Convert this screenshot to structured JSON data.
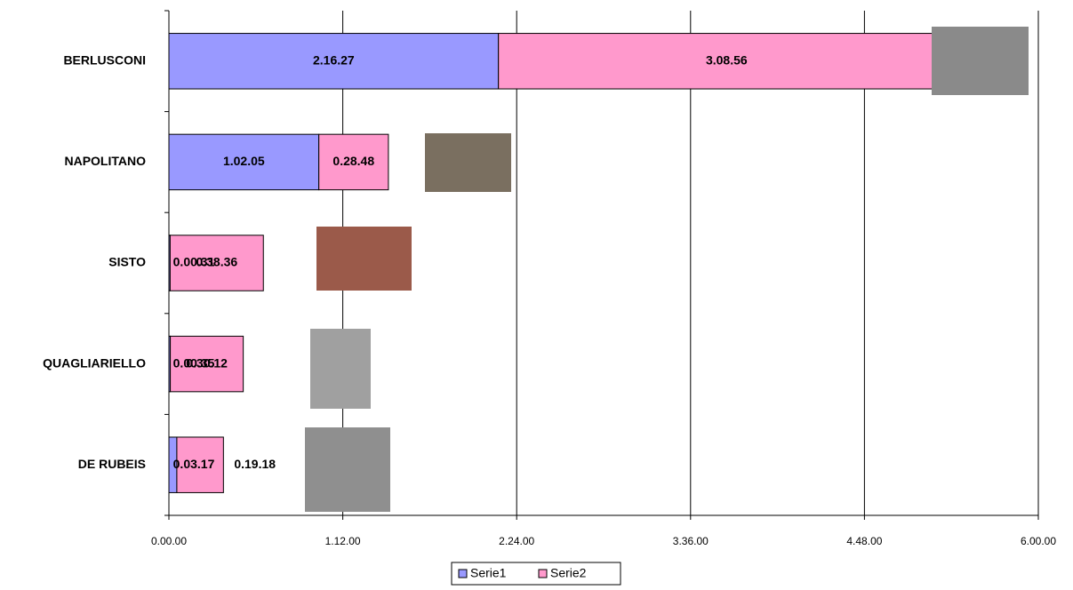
{
  "chart_data": {
    "type": "stacked_barh",
    "categories": [
      "BERLUSCONI",
      "NAPOLITANO",
      "SISTO",
      "QUAGLIARIELLO",
      "DE RUBEIS"
    ],
    "series": [
      {
        "name": "Serie1",
        "color": "#9999ff",
        "values": [
          2.274167,
          1.034722,
          0.008611,
          0.009722,
          0.054722
        ],
        "value_labels": [
          "2.16.27",
          "1.02.05",
          "0.00.31",
          "0.00.35",
          "0.03.17"
        ]
      },
      {
        "name": "Serie2",
        "color": "#ff99cc",
        "values": [
          3.148889,
          0.48,
          0.643333,
          0.503333,
          0.321667
        ],
        "value_labels": [
          "3.08.56",
          "0.28.48",
          "0.38.36",
          "0.30.12",
          "0.19.18"
        ]
      }
    ],
    "xlim": [
      0,
      6
    ],
    "xticks": [
      {
        "value": 0,
        "label": "0.00.00"
      },
      {
        "value": 1.2,
        "label": "1.12.00"
      },
      {
        "value": 2.4,
        "label": "2.24.00"
      },
      {
        "value": 3.6,
        "label": "3.36.00"
      },
      {
        "value": 4.8,
        "label": "4.48.00"
      },
      {
        "value": 6,
        "label": "6.00.00"
      }
    ],
    "grid": true,
    "legend": "bottom"
  }
}
